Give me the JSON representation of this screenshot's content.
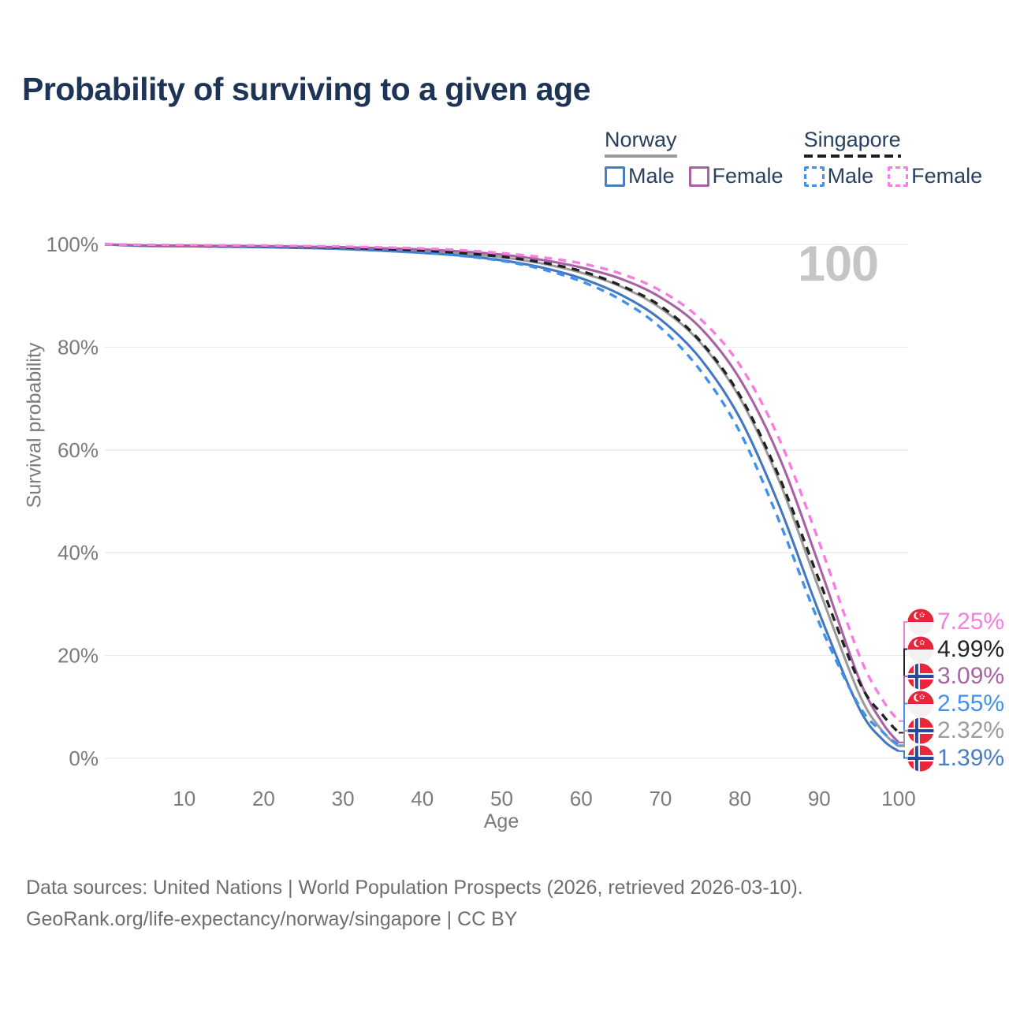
{
  "title": "Probability of surviving to a given age",
  "legend": {
    "groups": [
      {
        "name": "Norway",
        "line_style": "solid",
        "underline_color": "#9c9c9c",
        "items": [
          {
            "label": "Male",
            "color": "#4a7cc2",
            "line_style": "solid"
          },
          {
            "label": "Female",
            "color": "#a761a4",
            "line_style": "solid"
          }
        ]
      },
      {
        "name": "Singapore",
        "line_style": "dashed",
        "underline_color": "#1d1d1f",
        "items": [
          {
            "label": "Male",
            "color": "#4090f0",
            "line_style": "dashed"
          },
          {
            "label": "Female",
            "color": "#f97ce1",
            "line_style": "dashed"
          }
        ]
      }
    ]
  },
  "chart": {
    "ylabel": "Survival probability",
    "xlabel": "Age",
    "age_indicator": "100"
  },
  "chart_data": {
    "type": "line",
    "title": "Probability of surviving to a given age",
    "xlabel": "Age",
    "ylabel": "Survival probability",
    "xlim": [
      0,
      100
    ],
    "ylim": [
      0,
      100
    ],
    "grid": "horizontal",
    "legend_position": "top-right",
    "x_ticks": [
      10,
      20,
      30,
      40,
      50,
      60,
      70,
      80,
      90,
      100
    ],
    "y_tick_labels": [
      "0%",
      "20%",
      "40%",
      "60%",
      "80%",
      "100%"
    ],
    "x": [
      0,
      5,
      10,
      15,
      20,
      25,
      30,
      35,
      40,
      45,
      50,
      55,
      60,
      65,
      70,
      75,
      80,
      85,
      90,
      95,
      98,
      100
    ],
    "series": [
      {
        "name": "Norway Total",
        "country": "Norway",
        "sex": "Both",
        "line_style": "solid",
        "color": "#9c9c9c",
        "values": [
          100,
          99.75,
          99.7,
          99.62,
          99.55,
          99.42,
          99.28,
          99.0,
          98.7,
          98.2,
          97.5,
          96.3,
          94.5,
          91.8,
          87.6,
          80.9,
          70.1,
          53.8,
          32.8,
          12.6,
          5.2,
          2.32
        ]
      },
      {
        "name": "Norway Male",
        "country": "Norway",
        "sex": "Male",
        "line_style": "solid",
        "color": "#4378bf",
        "values": [
          100,
          99.7,
          99.65,
          99.55,
          99.45,
          99.3,
          99.1,
          98.75,
          98.35,
          97.8,
          96.9,
          95.5,
          93.4,
          90.2,
          85.4,
          77.8,
          66.2,
          49.0,
          28.3,
          9.8,
          3.6,
          1.39
        ]
      },
      {
        "name": "Norway Female",
        "country": "Norway",
        "sex": "Female",
        "line_style": "solid",
        "color": "#a761a4",
        "values": [
          100,
          99.8,
          99.75,
          99.7,
          99.65,
          99.55,
          99.45,
          99.25,
          99.0,
          98.6,
          98.0,
          97.0,
          95.5,
          93.3,
          89.7,
          83.8,
          73.8,
          58.5,
          37.5,
          15.5,
          6.8,
          3.09
        ]
      },
      {
        "name": "Singapore Male",
        "country": "Singapore",
        "sex": "Male",
        "line_style": "dashed",
        "color": "#4090f0",
        "values": [
          100,
          99.8,
          99.75,
          99.65,
          99.55,
          99.35,
          99.15,
          98.8,
          98.4,
          97.75,
          96.8,
          95.2,
          92.8,
          89.2,
          83.8,
          75.5,
          63.5,
          46.0,
          26.3,
          10.3,
          5.1,
          2.55
        ]
      },
      {
        "name": "Singapore Total",
        "country": "Singapore",
        "sex": "Both",
        "line_style": "dashed",
        "color": "#222222",
        "values": [
          100,
          99.85,
          99.8,
          99.72,
          99.65,
          99.5,
          99.35,
          99.1,
          98.8,
          98.3,
          97.6,
          96.5,
          94.8,
          92.0,
          88.0,
          81.2,
          70.6,
          54.6,
          34.6,
          15.0,
          8.4,
          4.99
        ]
      },
      {
        "name": "Singapore Female",
        "country": "Singapore",
        "sex": "Female",
        "line_style": "dashed",
        "color": "#f97ce1",
        "values": [
          100,
          99.9,
          99.85,
          99.8,
          99.75,
          99.65,
          99.55,
          99.4,
          99.2,
          98.85,
          98.3,
          97.5,
          96.3,
          94.3,
          91.0,
          85.5,
          76.5,
          62.0,
          42.0,
          20.2,
          11.3,
          7.25
        ]
      }
    ],
    "end_labels": [
      {
        "label": "7.25%",
        "series": "Singapore Female",
        "country": "singapore",
        "color": "#f97ce1",
        "value": 7.25
      },
      {
        "label": "4.99%",
        "series": "Singapore Total",
        "country": "singapore",
        "color": "#232323",
        "value": 4.99
      },
      {
        "label": "3.09%",
        "series": "Norway Female",
        "country": "norway",
        "color": "#a761a4",
        "value": 3.09
      },
      {
        "label": "2.55%",
        "series": "Singapore Male",
        "country": "singapore",
        "color": "#4090f0",
        "value": 2.55
      },
      {
        "label": "2.32%",
        "series": "Norway Total",
        "country": "norway",
        "color": "#9c9c9c",
        "value": 2.32
      },
      {
        "label": "1.39%",
        "series": "Norway Male",
        "country": "norway",
        "color": "#4a7cc2",
        "value": 1.39
      }
    ]
  },
  "footer": {
    "line1": "Data sources: United Nations | World Population Prospects (2026, retrieved 2026-03-10).",
    "line2": "GeoRank.org/life-expectancy/norway/singapore | CC BY"
  }
}
